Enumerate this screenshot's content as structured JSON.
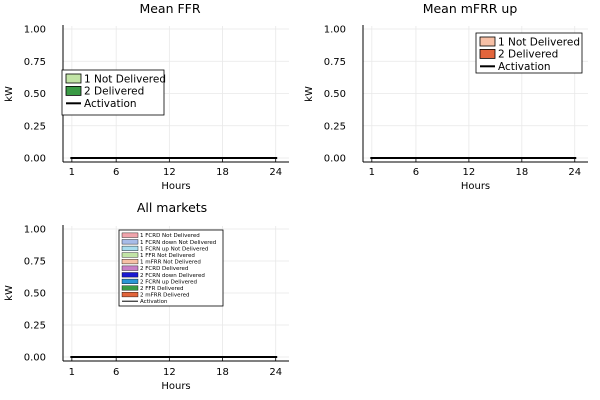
{
  "chart_data": [
    {
      "type": "bar",
      "title": "Mean FFR",
      "xlabel": "Hours",
      "ylabel": "kW",
      "x": [
        1,
        2,
        3,
        4,
        5,
        6,
        7,
        8,
        9,
        10,
        11,
        12,
        13,
        14,
        15,
        16,
        17,
        18,
        19,
        20,
        21,
        22,
        23,
        24
      ],
      "x_ticks": [
        "1",
        "6",
        "12",
        "18",
        "24"
      ],
      "y_ticks": [
        "0.00",
        "0.25",
        "0.50",
        "0.75",
        "1.00"
      ],
      "ylim": [
        0,
        1
      ],
      "grid": true,
      "legend_position": "left-middle",
      "legend_size": "large",
      "series": [
        {
          "name": "1 Not Delivered",
          "kind": "bar",
          "color": "#c2e4a6",
          "values": [
            0,
            0,
            0,
            0,
            0,
            0,
            0,
            0,
            0,
            0,
            0,
            0,
            0,
            0,
            0,
            0,
            0,
            0,
            0,
            0,
            0,
            0,
            0,
            0
          ]
        },
        {
          "name": "2 Delivered",
          "kind": "bar",
          "color": "#3a9a45",
          "values": [
            0,
            0,
            0,
            0,
            0,
            0,
            0,
            0,
            0,
            0,
            0,
            0,
            0,
            0,
            0,
            0,
            0,
            0,
            0,
            0,
            0,
            0,
            0,
            0
          ]
        },
        {
          "name": "Activation",
          "kind": "line",
          "color": "#000000",
          "values": [
            0,
            0,
            0,
            0,
            0,
            0,
            0,
            0,
            0,
            0,
            0,
            0,
            0,
            0,
            0,
            0,
            0,
            0,
            0,
            0,
            0,
            0,
            0,
            0
          ]
        }
      ]
    },
    {
      "type": "bar",
      "title": "Mean mFRR up",
      "xlabel": "Hours",
      "ylabel": "kW",
      "x": [
        1,
        2,
        3,
        4,
        5,
        6,
        7,
        8,
        9,
        10,
        11,
        12,
        13,
        14,
        15,
        16,
        17,
        18,
        19,
        20,
        21,
        22,
        23,
        24
      ],
      "x_ticks": [
        "1",
        "6",
        "12",
        "18",
        "24"
      ],
      "y_ticks": [
        "0.00",
        "0.25",
        "0.50",
        "0.75",
        "1.00"
      ],
      "ylim": [
        0,
        1
      ],
      "grid": true,
      "legend_position": "top-right",
      "legend_size": "large",
      "series": [
        {
          "name": "1 Not Delivered",
          "kind": "bar",
          "color": "#f7c0a6",
          "values": [
            0,
            0,
            0,
            0,
            0,
            0,
            0,
            0,
            0,
            0,
            0,
            0,
            0,
            0,
            0,
            0,
            0,
            0,
            0,
            0,
            0,
            0,
            0,
            0
          ]
        },
        {
          "name": "2 Delivered",
          "kind": "bar",
          "color": "#e2653c",
          "values": [
            0,
            0,
            0,
            0,
            0,
            0,
            0,
            0,
            0,
            0,
            0,
            0,
            0,
            0,
            0,
            0,
            0,
            0,
            0,
            0,
            0,
            0,
            0,
            0
          ]
        },
        {
          "name": "Activation",
          "kind": "line",
          "color": "#000000",
          "values": [
            0,
            0,
            0,
            0,
            0,
            0,
            0,
            0,
            0,
            0,
            0,
            0,
            0,
            0,
            0,
            0,
            0,
            0,
            0,
            0,
            0,
            0,
            0,
            0
          ]
        }
      ]
    },
    {
      "type": "bar",
      "title": "All markets",
      "xlabel": "Hours",
      "ylabel": "kW",
      "x": [
        1,
        2,
        3,
        4,
        5,
        6,
        7,
        8,
        9,
        10,
        11,
        12,
        13,
        14,
        15,
        16,
        17,
        18,
        19,
        20,
        21,
        22,
        23,
        24
      ],
      "x_ticks": [
        "1",
        "6",
        "12",
        "18",
        "24"
      ],
      "y_ticks": [
        "0.00",
        "0.25",
        "0.50",
        "0.75",
        "1.00"
      ],
      "ylim": [
        0,
        1
      ],
      "grid": true,
      "legend_position": "top-center",
      "legend_size": "small",
      "series": [
        {
          "name": "1 FCRD Not Delivered",
          "kind": "bar",
          "color": "#f0a4ac",
          "values": [
            0,
            0,
            0,
            0,
            0,
            0,
            0,
            0,
            0,
            0,
            0,
            0,
            0,
            0,
            0,
            0,
            0,
            0,
            0,
            0,
            0,
            0,
            0,
            0
          ]
        },
        {
          "name": "1 FCRN down Not Delivered",
          "kind": "bar",
          "color": "#a8bce8",
          "values": [
            0,
            0,
            0,
            0,
            0,
            0,
            0,
            0,
            0,
            0,
            0,
            0,
            0,
            0,
            0,
            0,
            0,
            0,
            0,
            0,
            0,
            0,
            0,
            0
          ]
        },
        {
          "name": "1 FCRN up Not Delivered",
          "kind": "bar",
          "color": "#a8dcee",
          "values": [
            0,
            0,
            0,
            0,
            0,
            0,
            0,
            0,
            0,
            0,
            0,
            0,
            0,
            0,
            0,
            0,
            0,
            0,
            0,
            0,
            0,
            0,
            0,
            0
          ]
        },
        {
          "name": "1 FFR Not Delivered",
          "kind": "bar",
          "color": "#c2e4a6",
          "values": [
            0,
            0,
            0,
            0,
            0,
            0,
            0,
            0,
            0,
            0,
            0,
            0,
            0,
            0,
            0,
            0,
            0,
            0,
            0,
            0,
            0,
            0,
            0,
            0
          ]
        },
        {
          "name": "1 mFRR Not Delivered",
          "kind": "bar",
          "color": "#f7c0a6",
          "values": [
            0,
            0,
            0,
            0,
            0,
            0,
            0,
            0,
            0,
            0,
            0,
            0,
            0,
            0,
            0,
            0,
            0,
            0,
            0,
            0,
            0,
            0,
            0,
            0
          ]
        },
        {
          "name": "2 FCRD Delivered",
          "kind": "bar",
          "color": "#c77fc6",
          "values": [
            0,
            0,
            0,
            0,
            0,
            0,
            0,
            0,
            0,
            0,
            0,
            0,
            0,
            0,
            0,
            0,
            0,
            0,
            0,
            0,
            0,
            0,
            0,
            0
          ]
        },
        {
          "name": "2 FCRN down Delivered",
          "kind": "bar",
          "color": "#1a1ad0",
          "values": [
            0,
            0,
            0,
            0,
            0,
            0,
            0,
            0,
            0,
            0,
            0,
            0,
            0,
            0,
            0,
            0,
            0,
            0,
            0,
            0,
            0,
            0,
            0,
            0
          ]
        },
        {
          "name": "2 FCRN up Delivered",
          "kind": "bar",
          "color": "#2a96d6",
          "values": [
            0,
            0,
            0,
            0,
            0,
            0,
            0,
            0,
            0,
            0,
            0,
            0,
            0,
            0,
            0,
            0,
            0,
            0,
            0,
            0,
            0,
            0,
            0,
            0
          ]
        },
        {
          "name": "2 FFR Delivered",
          "kind": "bar",
          "color": "#3a9a45",
          "values": [
            0,
            0,
            0,
            0,
            0,
            0,
            0,
            0,
            0,
            0,
            0,
            0,
            0,
            0,
            0,
            0,
            0,
            0,
            0,
            0,
            0,
            0,
            0,
            0
          ]
        },
        {
          "name": "2 mFRR Delivered",
          "kind": "bar",
          "color": "#e2653c",
          "values": [
            0,
            0,
            0,
            0,
            0,
            0,
            0,
            0,
            0,
            0,
            0,
            0,
            0,
            0,
            0,
            0,
            0,
            0,
            0,
            0,
            0,
            0,
            0,
            0
          ]
        },
        {
          "name": "Activation",
          "kind": "line",
          "color": "#000000",
          "values": [
            0,
            0,
            0,
            0,
            0,
            0,
            0,
            0,
            0,
            0,
            0,
            0,
            0,
            0,
            0,
            0,
            0,
            0,
            0,
            0,
            0,
            0,
            0,
            0
          ]
        }
      ]
    }
  ]
}
